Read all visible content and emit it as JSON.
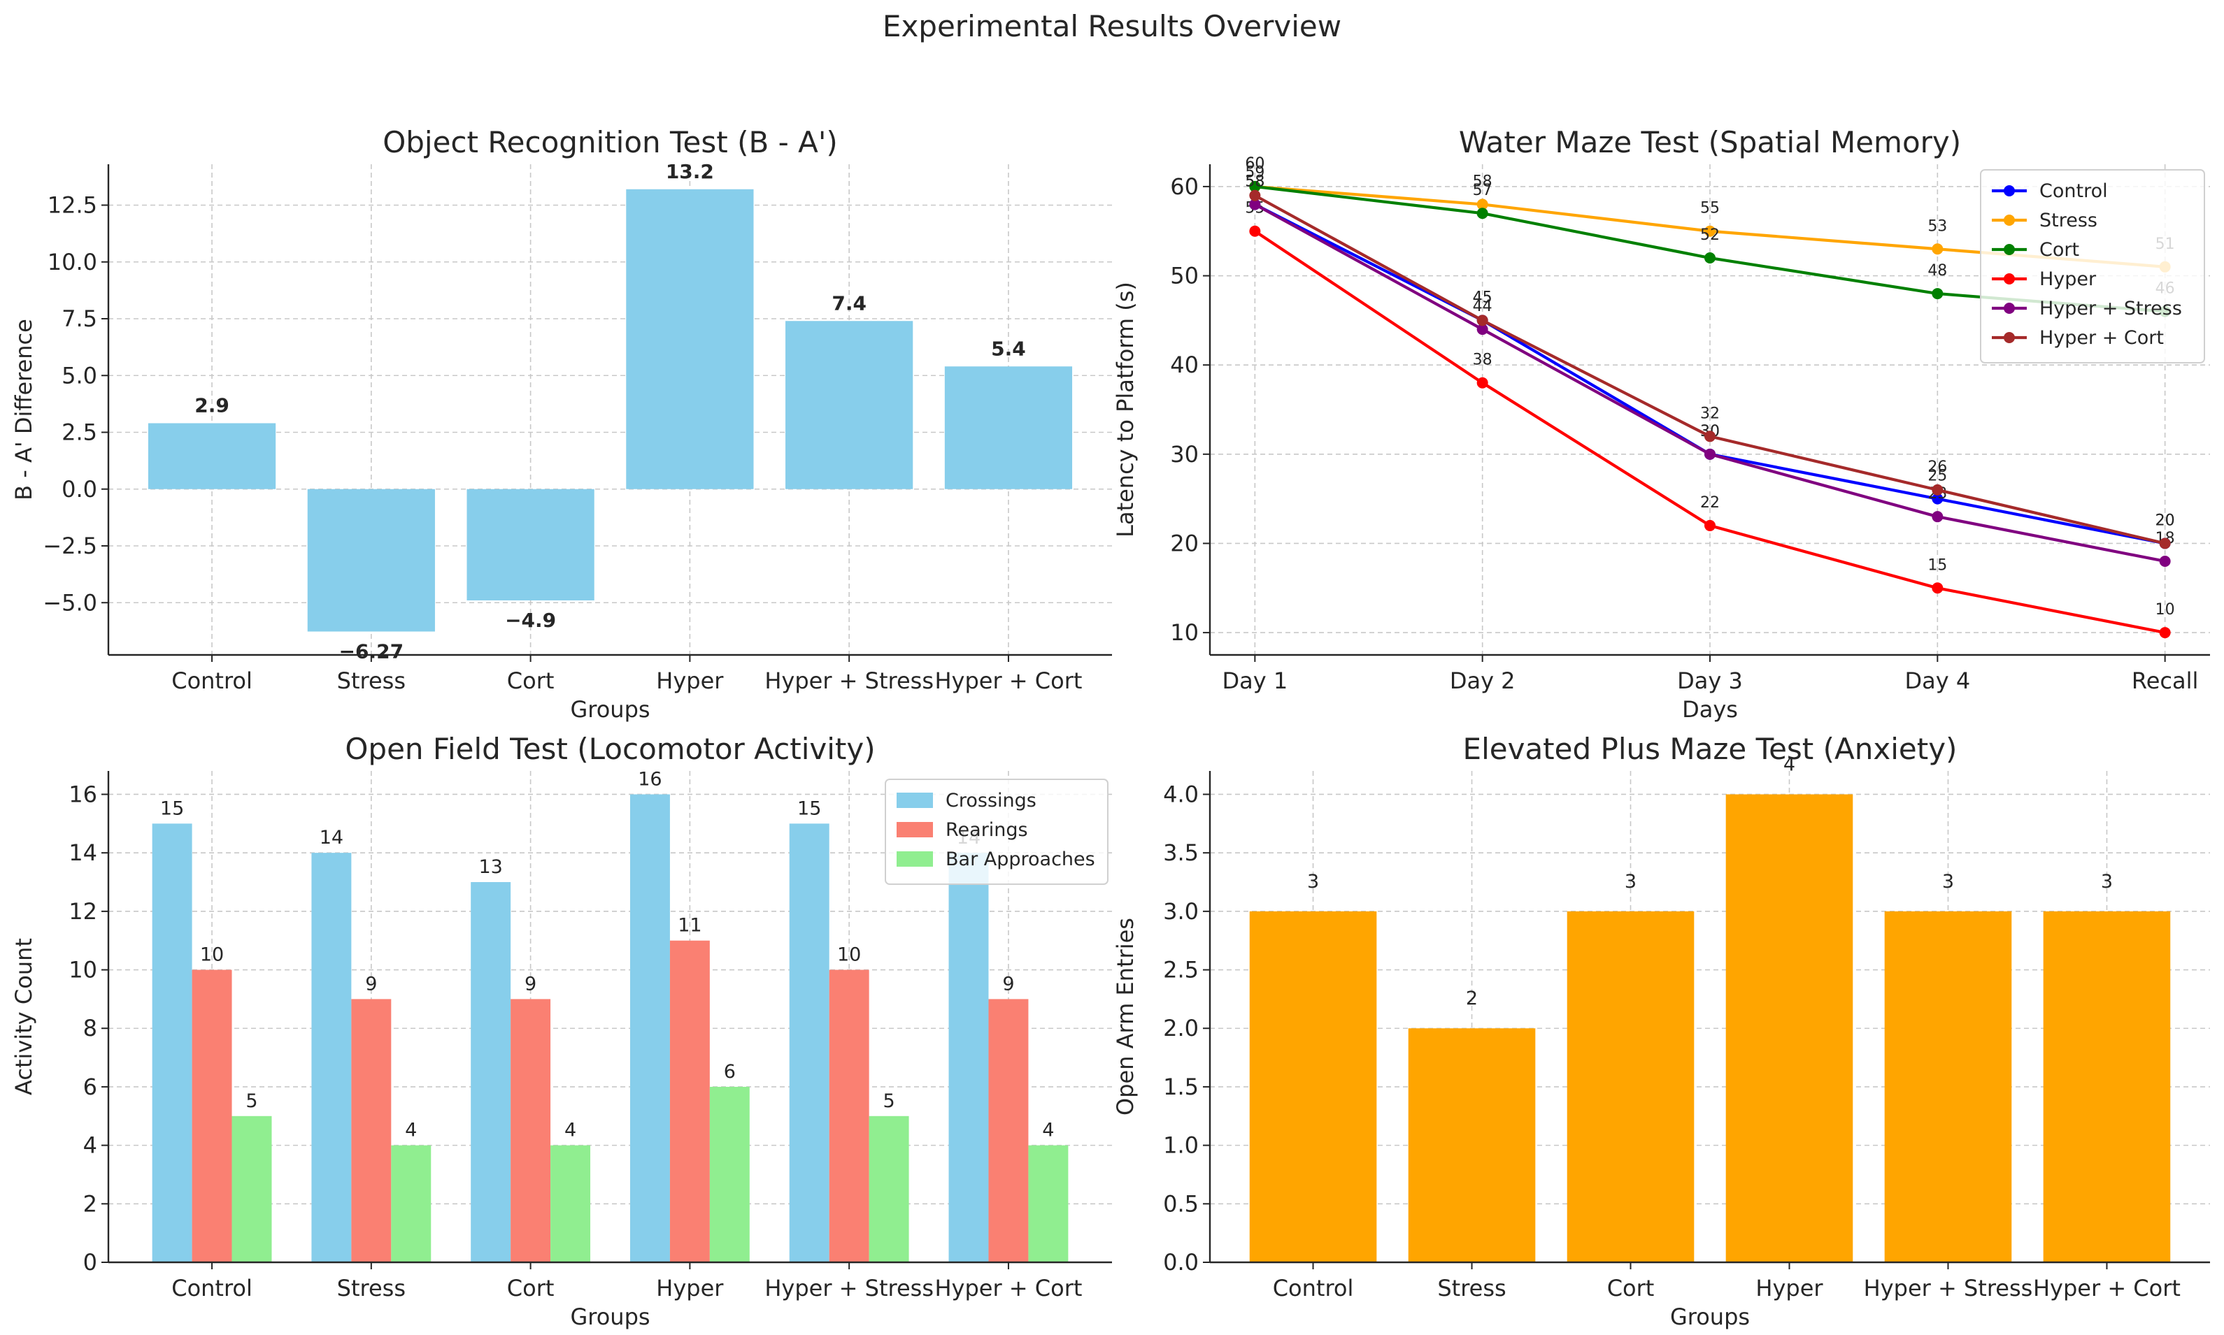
{
  "suptitle": "Experimental Results Overview",
  "chart_data": [
    {
      "id": "or",
      "type": "bar",
      "title": "Object Recognition Test (B - A')",
      "xlabel": "Groups",
      "ylabel": "B - A' Difference",
      "categories": [
        "Control",
        "Stress",
        "Cort",
        "Hyper",
        "Hyper + Stress",
        "Hyper + Cort"
      ],
      "values": [
        2.9,
        -6.27,
        -4.9,
        13.2,
        7.4,
        5.4
      ],
      "labels": [
        "2.9",
        "-6.27",
        "-4.9",
        "13.2",
        "7.4",
        "5.4"
      ],
      "ylim": [
        -7.3,
        14.3
      ],
      "yticks": [
        -5.0,
        -2.5,
        0.0,
        2.5,
        5.0,
        7.5,
        10.0,
        12.5
      ],
      "yticklabels": [
        "−5.0",
        "−2.5",
        "0.0",
        "2.5",
        "5.0",
        "7.5",
        "10.0",
        "12.5"
      ],
      "color": "#87CEEB",
      "grid": true
    },
    {
      "id": "wm",
      "type": "line",
      "title": "Water Maze Test (Spatial Memory)",
      "xlabel": "Days",
      "ylabel": "Latency to Platform (s)",
      "x": [
        "Day 1",
        "Day 2",
        "Day 3",
        "Day 4",
        "Recall"
      ],
      "ylim": [
        7.5,
        62.5
      ],
      "yticks": [
        10,
        20,
        30,
        40,
        50,
        60
      ],
      "yticklabels": [
        "10",
        "20",
        "30",
        "40",
        "50",
        "60"
      ],
      "legend_loc": "upper-right",
      "grid": true,
      "series": [
        {
          "name": "Control",
          "color": "#0000FF",
          "values": [
            58,
            45,
            30,
            25,
            20
          ]
        },
        {
          "name": "Stress",
          "color": "#FFA500",
          "values": [
            60,
            58,
            55,
            53,
            51
          ]
        },
        {
          "name": "Cort",
          "color": "#008000",
          "values": [
            60,
            57,
            52,
            48,
            46
          ]
        },
        {
          "name": "Hyper",
          "color": "#FF0000",
          "values": [
            55,
            38,
            22,
            15,
            10
          ]
        },
        {
          "name": "Hyper + Stress",
          "color": "#800080",
          "values": [
            58,
            44,
            30,
            23,
            18
          ]
        },
        {
          "name": "Hyper + Cort",
          "color": "#A52A2A",
          "values": [
            59,
            45,
            32,
            26,
            20
          ]
        }
      ]
    },
    {
      "id": "of",
      "type": "bar",
      "title": "Open Field Test (Locomotor Activity)",
      "xlabel": "Groups",
      "ylabel": "Activity Count",
      "categories": [
        "Control",
        "Stress",
        "Cort",
        "Hyper",
        "Hyper + Stress",
        "Hyper + Cort"
      ],
      "ylim": [
        0,
        16.8
      ],
      "yticks": [
        0,
        2,
        4,
        6,
        8,
        10,
        12,
        14,
        16
      ],
      "yticklabels": [
        "0",
        "2",
        "4",
        "6",
        "8",
        "10",
        "12",
        "14",
        "16"
      ],
      "legend_loc": "upper-right",
      "grid": true,
      "series": [
        {
          "name": "Crossings",
          "color": "#87CEEB",
          "values": [
            15,
            14,
            13,
            16,
            15,
            14
          ]
        },
        {
          "name": "Rearings",
          "color": "#FA8072",
          "values": [
            10,
            9,
            9,
            11,
            10,
            9
          ]
        },
        {
          "name": "Bar Approaches",
          "color": "#90EE90",
          "values": [
            5,
            4,
            4,
            6,
            5,
            4
          ]
        }
      ]
    },
    {
      "id": "epm",
      "type": "bar",
      "title": "Elevated Plus Maze Test (Anxiety)",
      "xlabel": "Groups",
      "ylabel": "Open Arm Entries",
      "categories": [
        "Control",
        "Stress",
        "Cort",
        "Hyper",
        "Hyper + Stress",
        "Hyper + Cort"
      ],
      "values": [
        3,
        2,
        3,
        4,
        3,
        3
      ],
      "labels": [
        "3",
        "2",
        "3",
        "4",
        "3",
        "3"
      ],
      "ylim": [
        0,
        4.2
      ],
      "yticks": [
        0,
        0.5,
        1.0,
        1.5,
        2.0,
        2.5,
        3.0,
        3.5,
        4.0
      ],
      "yticklabels": [
        "0.0",
        "0.5",
        "1.0",
        "1.5",
        "2.0",
        "2.5",
        "3.0",
        "3.5",
        "4.0"
      ],
      "color": "#FFA500",
      "grid": true
    }
  ]
}
